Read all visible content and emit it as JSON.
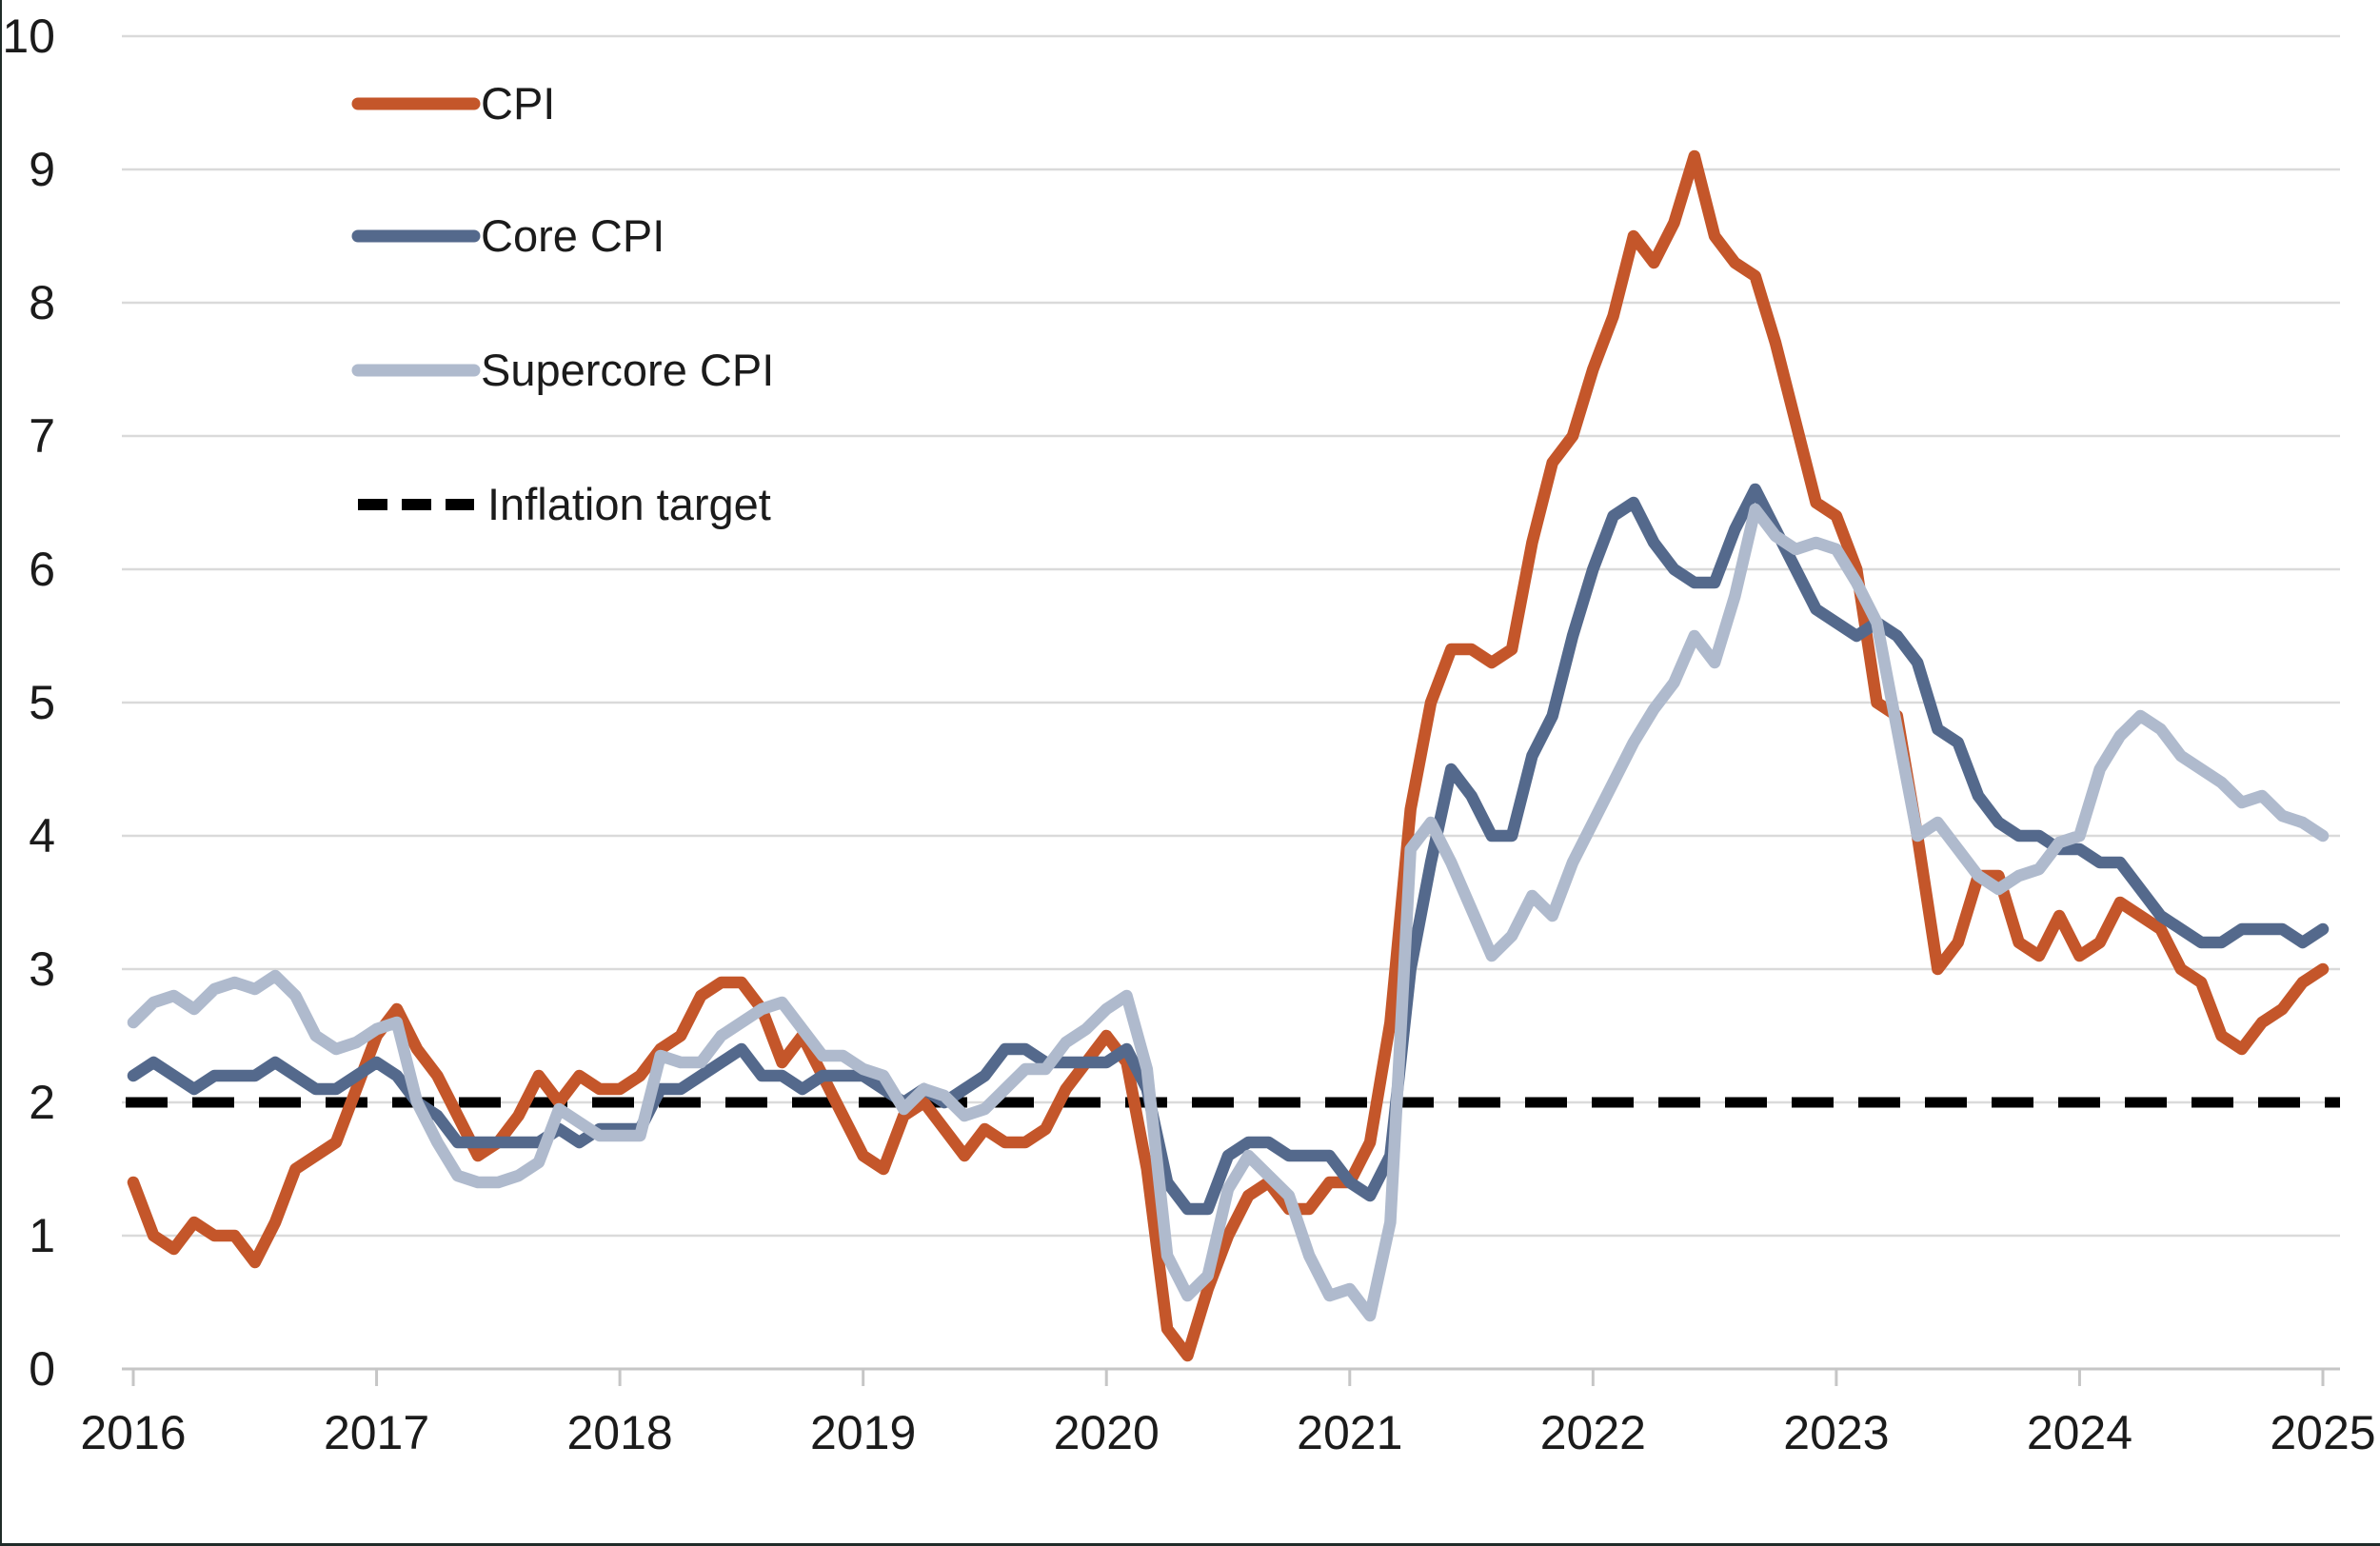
{
  "chart_data": {
    "type": "line",
    "title": "",
    "xlabel": "",
    "ylabel": "",
    "grid": true,
    "x_axis": {
      "tick_labels": [
        "2016",
        "2017",
        "2018",
        "2019",
        "2020",
        "2021",
        "2022",
        "2023",
        "2024",
        "2025"
      ],
      "start_month": "2016-01",
      "end_month": "2025-01",
      "frequency": "monthly"
    },
    "y_axis": {
      "min": 0,
      "max": 10,
      "tick_labels": [
        "0",
        "1",
        "2",
        "3",
        "4",
        "5",
        "6",
        "7",
        "8",
        "9",
        "10"
      ]
    },
    "legend": {
      "position": "top-left",
      "entries": [
        {
          "label": "CPI"
        },
        {
          "label": "Core CPI"
        },
        {
          "label": "Supercore CPI"
        },
        {
          "label": "Inflation target"
        }
      ]
    },
    "reference_line": {
      "name": "Inflation target",
      "value": 2,
      "style": "dashed",
      "color": "#000000"
    },
    "series": [
      {
        "name": "CPI",
        "color": "#C4562A",
        "values": [
          1.4,
          1.0,
          0.9,
          1.1,
          1.0,
          1.0,
          0.8,
          1.1,
          1.5,
          1.6,
          1.7,
          2.1,
          2.5,
          2.7,
          2.4,
          2.2,
          1.9,
          1.6,
          1.7,
          1.9,
          2.2,
          2.0,
          2.2,
          2.1,
          2.1,
          2.2,
          2.4,
          2.5,
          2.8,
          2.9,
          2.9,
          2.7,
          2.3,
          2.5,
          2.2,
          1.9,
          1.6,
          1.5,
          1.9,
          2.0,
          1.8,
          1.6,
          1.8,
          1.7,
          1.7,
          1.8,
          2.1,
          2.3,
          2.5,
          2.3,
          1.5,
          0.3,
          0.1,
          0.6,
          1.0,
          1.3,
          1.4,
          1.2,
          1.2,
          1.4,
          1.4,
          1.7,
          2.6,
          4.2,
          5.0,
          5.4,
          5.4,
          5.3,
          5.4,
          6.2,
          6.8,
          7.0,
          7.5,
          7.9,
          8.5,
          8.3,
          8.6,
          9.1,
          8.5,
          8.3,
          8.2,
          7.7,
          7.1,
          6.5,
          6.4,
          6.0,
          5.0,
          4.9,
          4.0,
          3.0,
          3.2,
          3.7,
          3.7,
          3.2,
          3.1,
          3.4,
          3.1,
          3.2,
          3.5,
          3.4,
          3.3,
          3.0,
          2.9,
          2.5,
          2.4,
          2.6,
          2.7,
          2.9,
          3.0
        ]
      },
      {
        "name": "Core CPI",
        "color": "#54698C",
        "values": [
          2.2,
          2.3,
          2.2,
          2.1,
          2.2,
          2.2,
          2.2,
          2.3,
          2.2,
          2.1,
          2.1,
          2.2,
          2.3,
          2.2,
          2.0,
          1.9,
          1.7,
          1.7,
          1.7,
          1.7,
          1.7,
          1.8,
          1.7,
          1.8,
          1.8,
          1.8,
          2.1,
          2.1,
          2.2,
          2.3,
          2.4,
          2.2,
          2.2,
          2.1,
          2.2,
          2.2,
          2.2,
          2.1,
          2.0,
          2.1,
          2.0,
          2.1,
          2.2,
          2.4,
          2.4,
          2.3,
          2.3,
          2.3,
          2.3,
          2.4,
          2.1,
          1.4,
          1.2,
          1.2,
          1.6,
          1.7,
          1.7,
          1.6,
          1.6,
          1.6,
          1.4,
          1.3,
          1.6,
          3.0,
          3.8,
          4.5,
          4.3,
          4.0,
          4.0,
          4.6,
          4.9,
          5.5,
          6.0,
          6.4,
          6.5,
          6.2,
          6.0,
          5.9,
          5.9,
          6.3,
          6.6,
          6.3,
          6.0,
          5.7,
          5.6,
          5.5,
          5.6,
          5.5,
          5.3,
          4.8,
          4.7,
          4.3,
          4.1,
          4.0,
          4.0,
          3.9,
          3.9,
          3.8,
          3.8,
          3.6,
          3.4,
          3.3,
          3.2,
          3.2,
          3.3,
          3.3,
          3.3,
          3.2,
          3.3
        ]
      },
      {
        "name": "Supercore CPI",
        "color": "#AFBACD",
        "values": [
          2.6,
          2.75,
          2.8,
          2.7,
          2.85,
          2.9,
          2.85,
          2.95,
          2.8,
          2.5,
          2.4,
          2.45,
          2.55,
          2.6,
          2.0,
          1.7,
          1.45,
          1.4,
          1.4,
          1.45,
          1.55,
          1.95,
          1.85,
          1.75,
          1.75,
          1.75,
          2.35,
          2.3,
          2.3,
          2.5,
          2.6,
          2.7,
          2.75,
          2.55,
          2.35,
          2.35,
          2.25,
          2.2,
          1.95,
          2.1,
          2.05,
          1.9,
          1.95,
          2.1,
          2.25,
          2.25,
          2.45,
          2.55,
          2.7,
          2.8,
          2.25,
          0.85,
          0.55,
          0.7,
          1.35,
          1.6,
          1.45,
          1.3,
          0.85,
          0.55,
          0.6,
          0.4,
          1.1,
          3.9,
          4.1,
          3.8,
          3.45,
          3.1,
          3.25,
          3.55,
          3.4,
          3.8,
          4.1,
          4.4,
          4.7,
          4.95,
          5.15,
          5.5,
          5.3,
          5.8,
          6.45,
          6.25,
          6.15,
          6.2,
          6.15,
          5.9,
          5.6,
          4.8,
          4.0,
          4.1,
          3.9,
          3.7,
          3.6,
          3.7,
          3.75,
          3.95,
          4.0,
          4.5,
          4.75,
          4.9,
          4.8,
          4.6,
          4.5,
          4.4,
          4.25,
          4.3,
          4.15,
          4.1,
          4.0
        ]
      }
    ]
  },
  "colors": {
    "background": "#ffffff",
    "gridline": "#DADADA",
    "axis": "#C6C6C6",
    "label_text": "#1b1b1b",
    "cpi": "#C4562A",
    "core_cpi": "#54698C",
    "supercore_cpi": "#AFBACD",
    "inflation_target": "#000000"
  }
}
